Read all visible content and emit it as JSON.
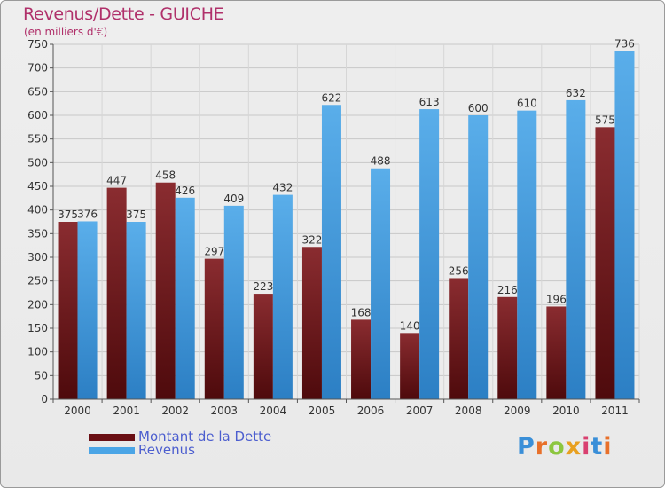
{
  "chart_data": {
    "type": "bar",
    "title": "Revenus/Dette - GUICHE",
    "subtitle": "(en milliers d'€)",
    "categories": [
      "2000",
      "2001",
      "2002",
      "2003",
      "2004",
      "2005",
      "2006",
      "2007",
      "2008",
      "2009",
      "2010",
      "2011"
    ],
    "series": [
      {
        "name": "Montant de la Dette",
        "color": "#7a2025",
        "values": [
          375,
          447,
          458,
          297,
          223,
          322,
          168,
          140,
          256,
          216,
          196,
          575
        ]
      },
      {
        "name": "Revenus",
        "color": "#4ba5e6",
        "values": [
          376,
          375,
          426,
          409,
          432,
          622,
          488,
          613,
          600,
          610,
          632,
          736
        ]
      }
    ],
    "ylim": [
      0,
      750
    ],
    "yticks": [
      0,
      50,
      100,
      150,
      200,
      250,
      300,
      350,
      400,
      450,
      500,
      550,
      600,
      650,
      700,
      750
    ],
    "grid": true,
    "legend_position": "bottom-left"
  },
  "logo": {
    "letters": [
      "P",
      "r",
      "o",
      "x",
      "i",
      "t",
      "i"
    ],
    "colors": [
      "#3a8fd8",
      "#e8702a",
      "#8cc63f",
      "#e8a020",
      "#d94070",
      "#3a8fd8",
      "#e8702a"
    ]
  }
}
